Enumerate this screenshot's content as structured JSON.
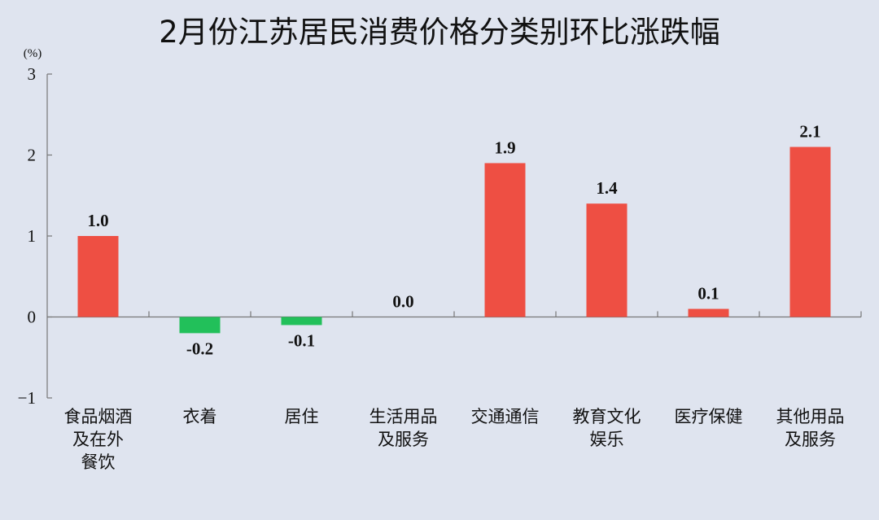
{
  "chart_data": {
    "type": "bar",
    "title": "2月份江苏居民消费价格分类别环比涨跌幅",
    "ylabel": "(%)",
    "xlabel": "",
    "ylim": [
      -1,
      3
    ],
    "yticks": [
      "3",
      "2",
      "1",
      "0",
      "−1"
    ],
    "ytick_values": [
      3,
      2,
      1,
      0,
      -1
    ],
    "categories": [
      [
        "食品烟酒",
        "及在外",
        "餐饮"
      ],
      [
        "衣着"
      ],
      [
        "居住"
      ],
      [
        "生活用品",
        "及服务"
      ],
      [
        "交通通信"
      ],
      [
        "教育文化",
        "娱乐"
      ],
      [
        "医疗保健"
      ],
      [
        "其他用品",
        "及服务"
      ]
    ],
    "values": [
      1.0,
      -0.2,
      -0.1,
      0.0,
      1.9,
      1.4,
      0.1,
      2.1
    ],
    "value_labels": [
      "1.0",
      "-0.2",
      "-0.1",
      "0.0",
      "1.9",
      "1.4",
      "0.1",
      "2.1"
    ],
    "grid": false,
    "colors": {
      "positive": "#ee4f43",
      "negative": "#22c05a",
      "axis": "#777777",
      "background": "#dfe4ef"
    }
  }
}
